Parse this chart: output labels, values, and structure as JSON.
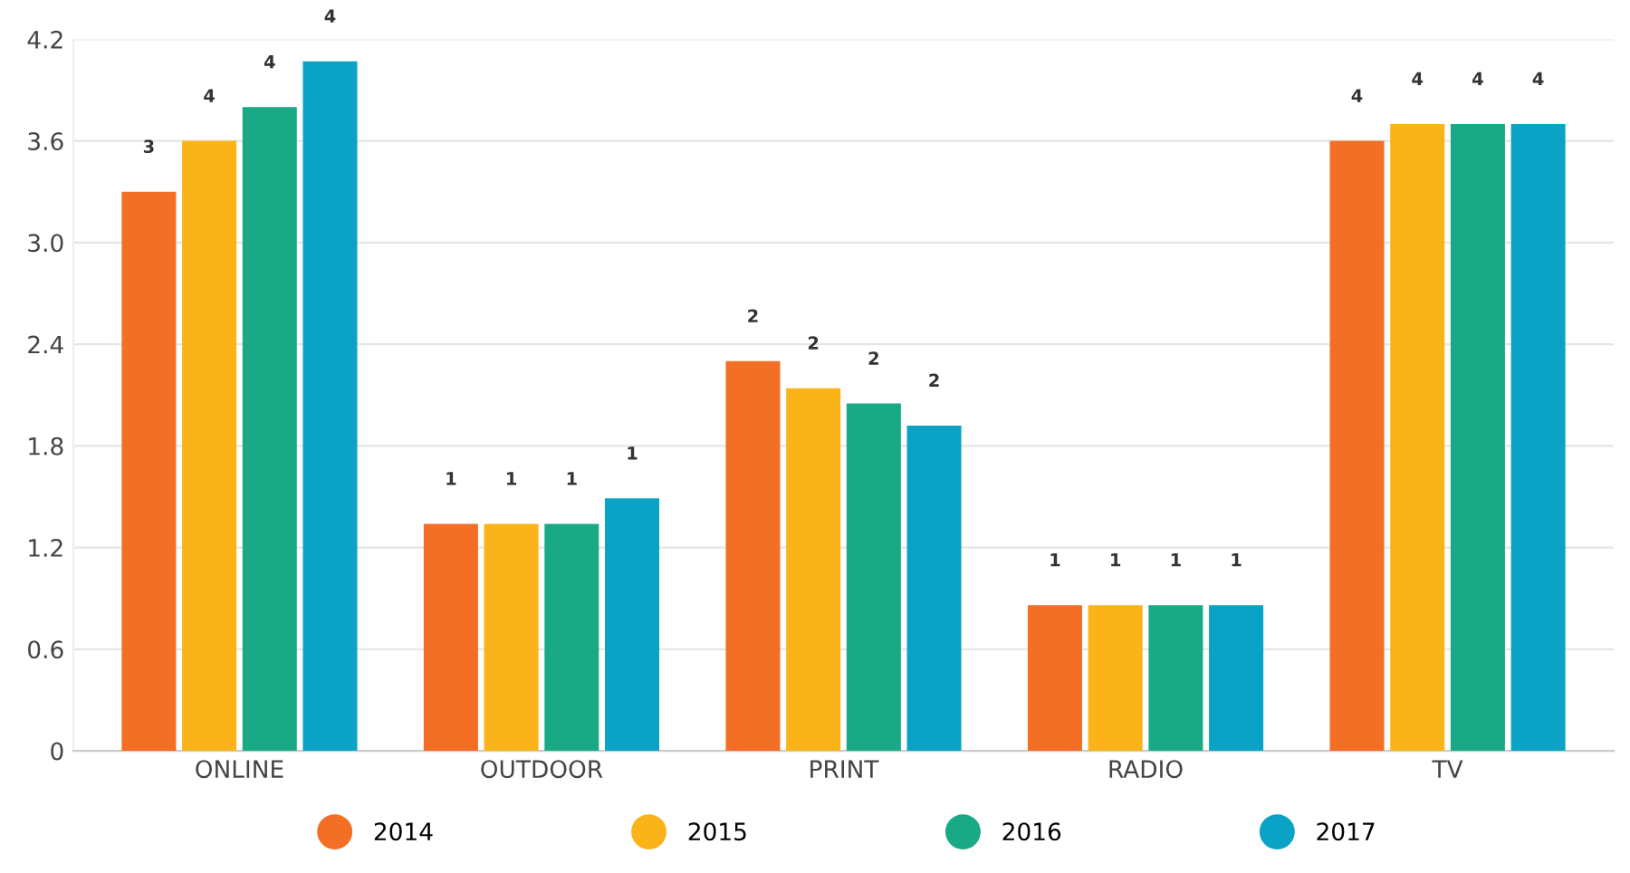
{
  "chart_data": {
    "type": "bar",
    "categories": [
      "ONLINE",
      "OUTDOOR",
      "PRINT",
      "RADIO",
      "TV"
    ],
    "series": [
      {
        "name": "2014",
        "color": "#f36f26",
        "values": [
          3.3,
          1.34,
          2.3,
          0.86,
          3.6
        ],
        "value_labels": [
          "3",
          "1",
          "2",
          "1",
          "4"
        ]
      },
      {
        "name": "2015",
        "color": "#fbb31a",
        "values": [
          3.6,
          1.34,
          2.14,
          0.86,
          3.7
        ],
        "value_labels": [
          "4",
          "1",
          "2",
          "1",
          "4"
        ]
      },
      {
        "name": "2016",
        "color": "#19a985",
        "values": [
          3.8,
          1.34,
          2.05,
          0.86,
          3.7
        ],
        "value_labels": [
          "4",
          "1",
          "2",
          "1",
          "4"
        ]
      },
      {
        "name": "2017",
        "color": "#0aa3c6",
        "values": [
          4.07,
          1.49,
          1.92,
          0.86,
          3.7
        ],
        "value_labels": [
          "4",
          "1",
          "2",
          "1",
          "4"
        ]
      }
    ],
    "ylim": [
      0,
      4.2
    ],
    "yticks": [
      0,
      0.6,
      1.2,
      1.8,
      2.4,
      {
        "value": 3,
        "label": "3.0"
      },
      3.6,
      4.2
    ],
    "grid": "y",
    "legend": "bottom",
    "marker": "circle"
  }
}
